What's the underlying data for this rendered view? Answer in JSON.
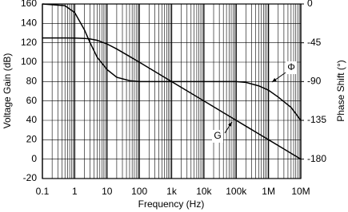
{
  "chart_data": {
    "type": "line",
    "xlabel": "Frequency (Hz)",
    "ylabel": "Voltage Gain (dB)",
    "y2label": "Phase Shift (°)",
    "log_x": true,
    "grid": true,
    "x": [
      0.1,
      0.5,
      1,
      2,
      3,
      5,
      10,
      20,
      50,
      100,
      1000,
      10000,
      100000,
      200000,
      500000,
      1000000,
      2000000,
      5000000,
      10000000
    ],
    "series": [
      {
        "name": "G",
        "color": "#000000",
        "values": [
          125,
          125,
          124.9,
          124.5,
          123.9,
          122.5,
          118.8,
          113.6,
          105.9,
          100,
          80,
          60,
          40,
          34,
          26,
          20,
          14,
          6,
          0
        ]
      },
      {
        "name": "Φ",
        "color": "#000000",
        "axis": "y2",
        "values": [
          0,
          -2,
          -10,
          -30,
          -45,
          -62,
          -76,
          -85,
          -89,
          -90,
          -90,
          -90,
          -90,
          -91,
          -95,
          -100,
          -108,
          -120,
          -135
        ]
      }
    ],
    "xlim": [
      0.1,
      10000000
    ],
    "xticks": [
      0.1,
      1,
      10,
      100,
      {
        "value": 1000,
        "label": "1k"
      },
      {
        "value": 10000,
        "label": "10k"
      },
      {
        "value": 100000,
        "label": "100k"
      },
      {
        "value": 1000000,
        "label": "1M"
      },
      {
        "value": 10000000,
        "label": "10M"
      }
    ],
    "ylim": [
      -20,
      160
    ],
    "yticks": [
      -20,
      0,
      20,
      40,
      60,
      80,
      100,
      120,
      140,
      160
    ],
    "y2lim": [
      -202.5,
      0
    ],
    "y2ticks": [
      -180,
      -135,
      -90,
      -45,
      0
    ]
  }
}
